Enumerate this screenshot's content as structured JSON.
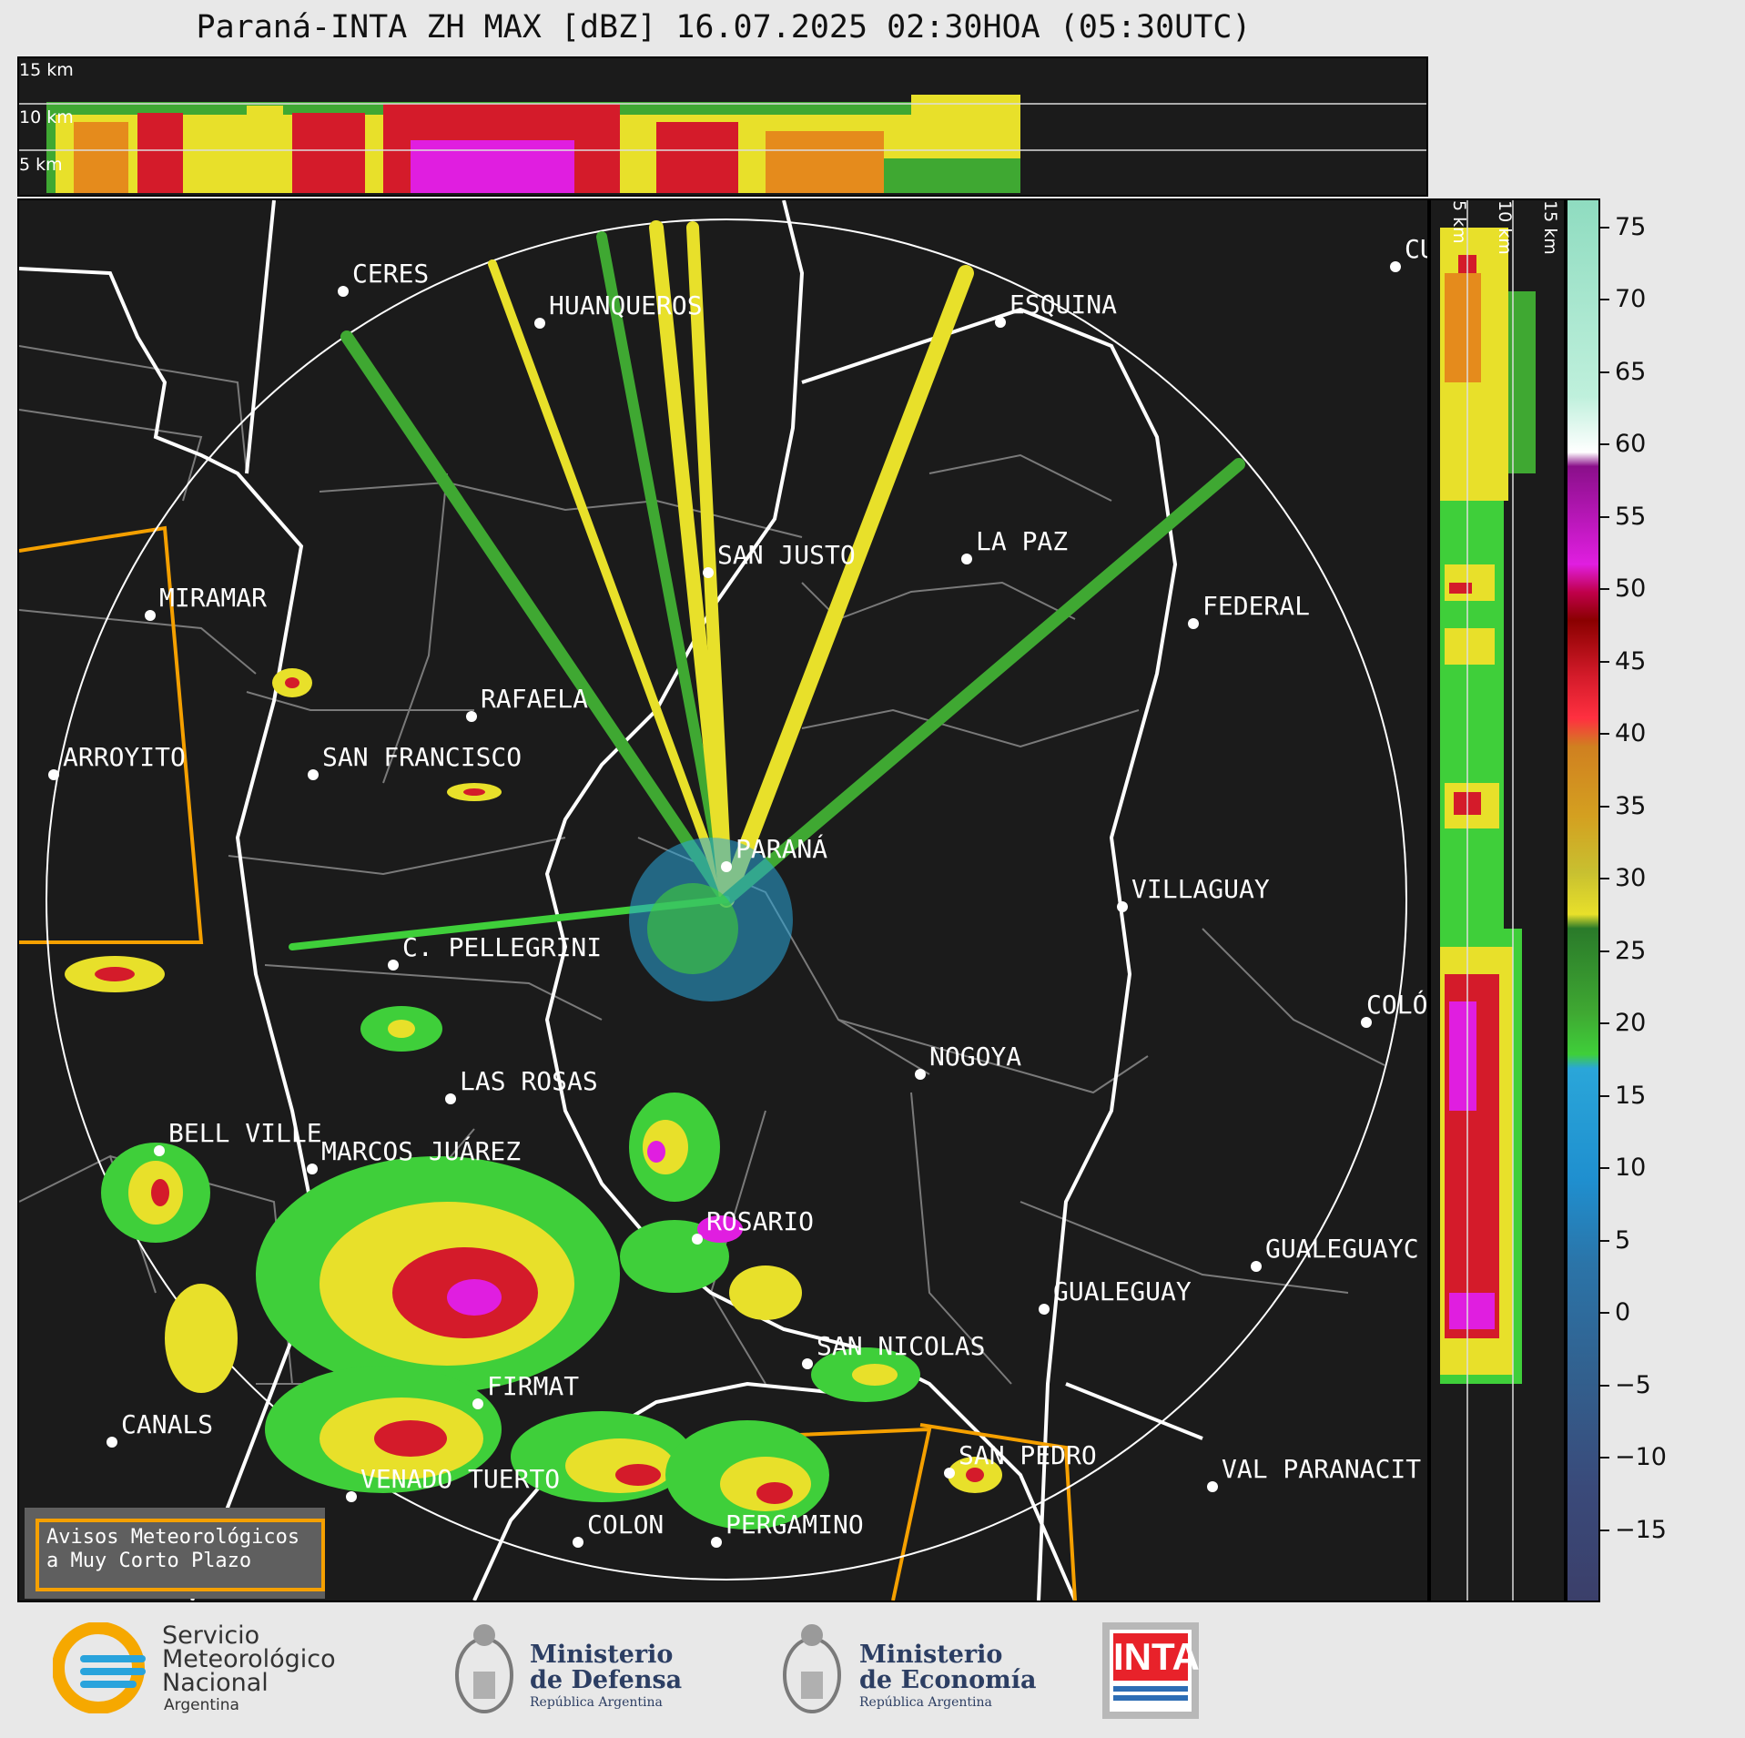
{
  "title": "Paraná-INTA ZH MAX [dBZ] 16.07.2025 02:30HOA (05:30UTC)",
  "top_panel": {
    "height_labels": [
      "15 km",
      "10 km",
      "5 km"
    ]
  },
  "side_panel": {
    "height_labels": [
      "5 km",
      "10 km",
      "15 km"
    ]
  },
  "colorbar": {
    "ticks": [
      "75",
      "70",
      "65",
      "60",
      "55",
      "50",
      "45",
      "40",
      "35",
      "30",
      "25",
      "20",
      "15",
      "10",
      "5",
      "0",
      "−5",
      "−10",
      "−15"
    ],
    "range_dbz": [
      -20,
      77
    ],
    "palette": [
      {
        "from": -20,
        "to": 15,
        "color": "#3b4a7a",
        "note_color_end": "#2aa6d9"
      },
      {
        "from": 18,
        "to": 30,
        "color": "#3fcf3a"
      },
      {
        "from": 30,
        "to": 42,
        "color": "#e8e02a"
      },
      {
        "from": 42,
        "to": 50,
        "color": "#d41b2a"
      },
      {
        "from": 50,
        "to": 60,
        "color": "#e01ee0"
      },
      {
        "from": 60,
        "to": 77,
        "color": "#a8e6cc"
      }
    ]
  },
  "cities": [
    {
      "name": "CERES"
    },
    {
      "name": "HUANQUEROS"
    },
    {
      "name": "ESQUINA"
    },
    {
      "name": "CU"
    },
    {
      "name": "SAN JUSTO"
    },
    {
      "name": "LA PAZ"
    },
    {
      "name": "MIRAMAR"
    },
    {
      "name": "FEDERAL"
    },
    {
      "name": "RAFAELA"
    },
    {
      "name": "ARROYITO"
    },
    {
      "name": "SAN FRANCISCO"
    },
    {
      "name": "PARANÁ"
    },
    {
      "name": "VILLAGUAY"
    },
    {
      "name": "C. PELLEGRINI"
    },
    {
      "name": "COLÓ"
    },
    {
      "name": "NOGOYA"
    },
    {
      "name": "LAS ROSAS"
    },
    {
      "name": "BELL VILLE"
    },
    {
      "name": "MARCOS JUÁREZ"
    },
    {
      "name": "ROSARIO"
    },
    {
      "name": "GUALEGUAYC"
    },
    {
      "name": "GUALEGUAY"
    },
    {
      "name": "SAN NICOLAS"
    },
    {
      "name": "FIRMAT"
    },
    {
      "name": "CANALS"
    },
    {
      "name": "SAN PEDRO"
    },
    {
      "name": "VENADO TUERTO"
    },
    {
      "name": "VAL PARANACIT"
    },
    {
      "name": "COLON"
    },
    {
      "name": "PERGAMINO"
    }
  ],
  "warning_box": {
    "line1": "Avisos Meteorológicos",
    "line2": "a Muy Corto Plazo"
  },
  "logos": {
    "smn": {
      "line1": "Servicio",
      "line2": "Meteorológico",
      "line3": "Nacional",
      "line4": "Argentina"
    },
    "defensa": {
      "line1": "Ministerio",
      "line2": "de Defensa",
      "line3": "República Argentina"
    },
    "economia": {
      "line1": "Ministerio",
      "line2": "de Economía",
      "line3": "República Argentina"
    },
    "inta": {
      "text": "INTA"
    }
  },
  "colors": {
    "background": "#1b1b1b",
    "range_ring": "#ffffff",
    "province_border": "#ffffff",
    "department_border": "#7a7a7a",
    "warning_zone": "#f5a000"
  }
}
